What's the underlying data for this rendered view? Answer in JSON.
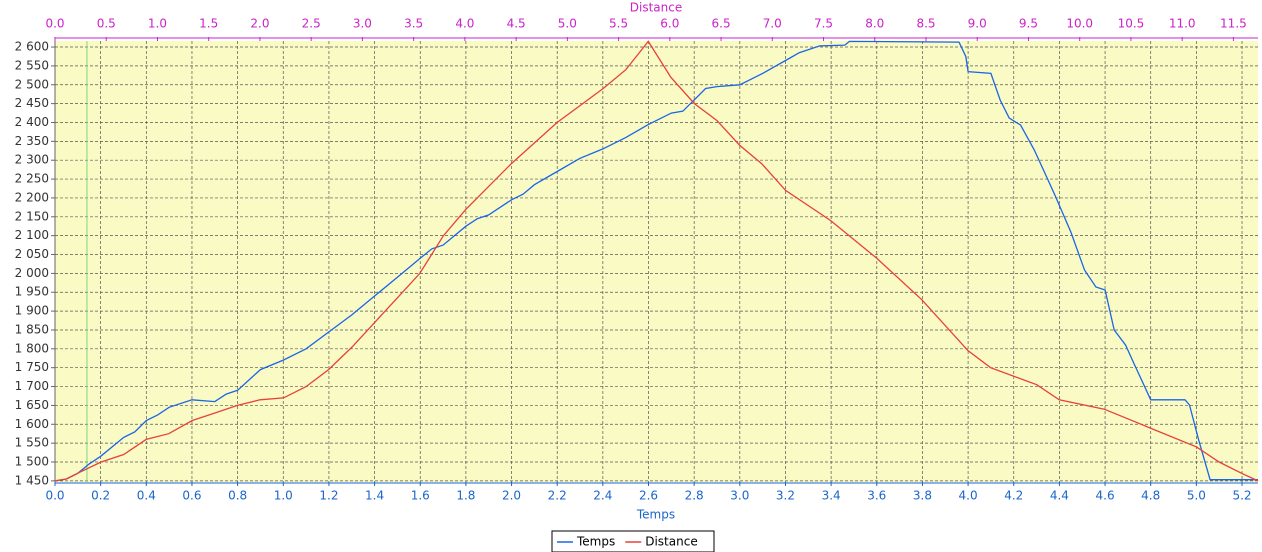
{
  "chart_data": {
    "type": "line",
    "xlabel": "Temps",
    "x2label": "Distance",
    "xlim": [
      0,
      5.27
    ],
    "x2lim": [
      0,
      11.74
    ],
    "ylim": [
      1447,
      2616
    ],
    "grid": true,
    "crosshair_x": 0.14,
    "legend": "bottom",
    "xticks": [
      {
        "value": 0,
        "label": "0.0"
      },
      0.2,
      0.4,
      0.6,
      0.8,
      {
        "value": 1,
        "label": "1.0"
      },
      1.2,
      1.4,
      1.6,
      1.8,
      {
        "value": 2,
        "label": "2.0"
      },
      2.2,
      2.4,
      2.6,
      2.8,
      {
        "value": 3,
        "label": "3.0"
      },
      3.2,
      3.4,
      3.6,
      3.8,
      {
        "value": 4,
        "label": "4.0"
      },
      4.2,
      4.4,
      4.6,
      4.8,
      {
        "value": 5,
        "label": "5.0"
      },
      5.2
    ],
    "x2ticks": [
      {
        "value": 0,
        "label": "0.0"
      },
      0.5,
      {
        "value": 1,
        "label": "1.0"
      },
      1.5,
      {
        "value": 2,
        "label": "2.0"
      },
      2.5,
      {
        "value": 3,
        "label": "3.0"
      },
      3.5,
      {
        "value": 4,
        "label": "4.0"
      },
      4.5,
      {
        "value": 5,
        "label": "5.0"
      },
      5.5,
      {
        "value": 6,
        "label": "6.0"
      },
      6.5,
      {
        "value": 7,
        "label": "7.0"
      },
      7.5,
      {
        "value": 8,
        "label": "8.0"
      },
      8.5,
      {
        "value": 9,
        "label": "9.0"
      },
      9.5,
      {
        "value": 10,
        "label": "10.0"
      },
      10.5,
      {
        "value": 11,
        "label": "11.0"
      },
      11.5
    ],
    "yticks": [
      {
        "value": 1450,
        "label": "1 450"
      },
      {
        "value": 1500,
        "label": "1 500"
      },
      {
        "value": 1550,
        "label": "1 550"
      },
      {
        "value": 1600,
        "label": "1 600"
      },
      {
        "value": 1650,
        "label": "1 650"
      },
      {
        "value": 1700,
        "label": "1 700"
      },
      {
        "value": 1750,
        "label": "1 750"
      },
      {
        "value": 1800,
        "label": "1 800"
      },
      {
        "value": 1850,
        "label": "1 850"
      },
      {
        "value": 1900,
        "label": "1 900"
      },
      {
        "value": 1950,
        "label": "1 950"
      },
      {
        "value": 2000,
        "label": "2 000"
      },
      {
        "value": 2050,
        "label": "2 050"
      },
      {
        "value": 2100,
        "label": "2 100"
      },
      {
        "value": 2150,
        "label": "2 150"
      },
      {
        "value": 2200,
        "label": "2 200"
      },
      {
        "value": 2250,
        "label": "2 250"
      },
      {
        "value": 2300,
        "label": "2 300"
      },
      {
        "value": 2350,
        "label": "2 350"
      },
      {
        "value": 2400,
        "label": "2 400"
      },
      {
        "value": 2450,
        "label": "2 450"
      },
      {
        "value": 2500,
        "label": "2 500"
      },
      {
        "value": 2550,
        "label": "2 550"
      },
      {
        "value": 2600,
        "label": "2 600"
      }
    ],
    "series": [
      {
        "name": "Temps",
        "color": "#1a66e6",
        "axis": "x",
        "x": [
          0,
          0.05,
          0.1,
          0.15,
          0.2,
          0.3,
          0.35,
          0.4,
          0.45,
          0.5,
          0.6,
          0.7,
          0.75,
          0.8,
          0.9,
          1.0,
          1.1,
          1.2,
          1.3,
          1.4,
          1.5,
          1.6,
          1.65,
          1.7,
          1.8,
          1.85,
          1.9,
          2.0,
          2.05,
          2.1,
          2.2,
          2.3,
          2.4,
          2.5,
          2.6,
          2.7,
          2.75,
          2.8,
          2.85,
          2.9,
          3.0,
          3.1,
          3.22,
          3.26,
          3.35,
          3.46,
          3.48,
          3.96,
          3.99,
          4.0,
          4.1,
          4.14,
          4.18,
          4.23,
          4.29,
          4.34,
          4.38,
          4.45,
          4.51,
          4.56,
          4.6,
          4.64,
          4.69,
          4.73,
          4.77,
          4.8,
          4.95,
          4.97,
          5.01,
          5.06,
          5.27
        ],
        "values": [
          1450,
          1455,
          1470,
          1495,
          1515,
          1565,
          1580,
          1610,
          1625,
          1645,
          1665,
          1660,
          1680,
          1690,
          1745,
          1770,
          1800,
          1845,
          1890,
          1940,
          1990,
          2040,
          2065,
          2075,
          2125,
          2145,
          2155,
          2195,
          2210,
          2235,
          2270,
          2305,
          2330,
          2360,
          2395,
          2425,
          2430,
          2460,
          2490,
          2495,
          2500,
          2530,
          2571,
          2585,
          2603,
          2605,
          2615,
          2613,
          2575,
          2535,
          2530,
          2460,
          2412,
          2393,
          2327,
          2261,
          2208,
          2110,
          2009,
          1964,
          1956,
          1850,
          1810,
          1757,
          1704,
          1665,
          1665,
          1651,
          1559,
          1453,
          1453
        ]
      },
      {
        "name": "Distance",
        "color": "#e8403a",
        "axis": "x2",
        "x": [
          0,
          0.11,
          0.22,
          0.45,
          0.67,
          0.89,
          1.11,
          1.34,
          1.56,
          1.78,
          2.0,
          2.23,
          2.45,
          2.67,
          2.9,
          3.12,
          3.34,
          3.56,
          3.79,
          4.01,
          4.45,
          4.9,
          5.35,
          5.57,
          5.79,
          6.01,
          6.24,
          6.46,
          6.68,
          6.9,
          7.13,
          7.57,
          8.02,
          8.46,
          8.91,
          9.13,
          9.58,
          9.8,
          10.24,
          10.69,
          11.14,
          11.36,
          11.58,
          11.74
        ],
        "values": [
          1450,
          1455,
          1470,
          1500,
          1520,
          1560,
          1575,
          1610,
          1630,
          1650,
          1665,
          1670,
          1700,
          1745,
          1805,
          1870,
          1935,
          2000,
          2100,
          2170,
          2290,
          2400,
          2490,
          2540,
          2615,
          2520,
          2450,
          2405,
          2340,
          2290,
          2220,
          2140,
          2040,
          1930,
          1795,
          1750,
          1705,
          1665,
          1640,
          1590,
          1540,
          1500,
          1470,
          1450
        ]
      }
    ]
  }
}
